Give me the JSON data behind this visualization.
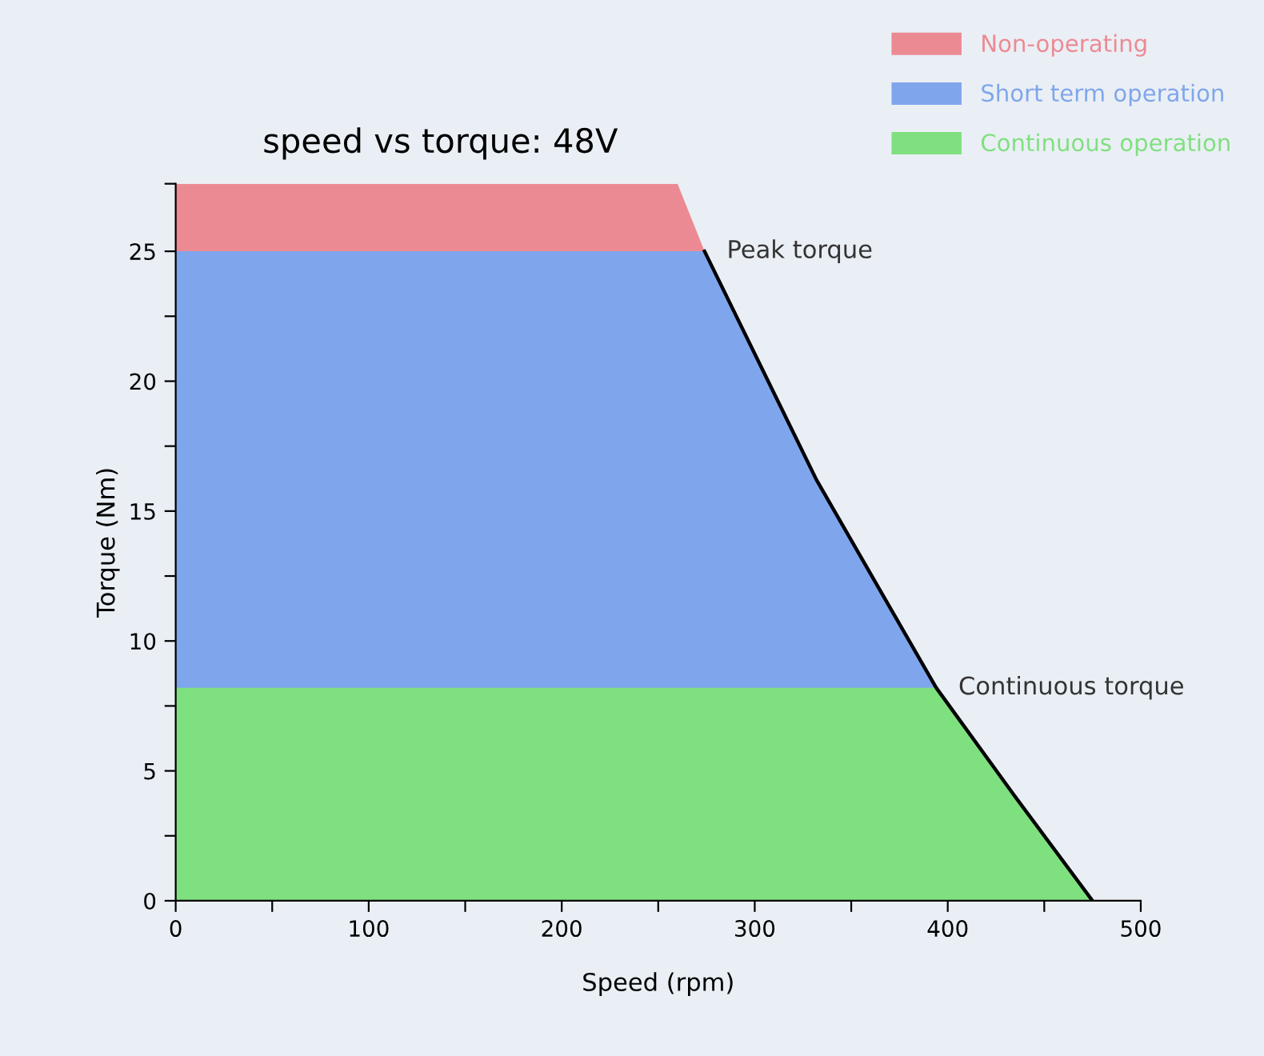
{
  "chart_data": {
    "type": "area",
    "title": "speed vs torque: 48V",
    "xlabel": "Speed (rpm)",
    "ylabel": "Torque (Nm)",
    "series": [
      {
        "name": "Non-operating",
        "color": "#ec8a94",
        "x": [
          0,
          260,
          274
        ],
        "values": [
          27.6,
          27.6,
          25
        ]
      },
      {
        "name": "Short term operation",
        "color": "#7fa6ec",
        "x": [
          0,
          274,
          332,
          394
        ],
        "values": [
          25,
          25,
          16.2,
          8.2
        ]
      },
      {
        "name": "Continuous operation",
        "color": "#7fe07f",
        "x": [
          0,
          394,
          434,
          475
        ],
        "values": [
          8.2,
          8.2,
          4.1,
          0
        ]
      },
      {
        "type": "line",
        "color": "#000000",
        "x": [
          274,
          332,
          394,
          434,
          475
        ],
        "values": [
          25,
          16.2,
          8.2,
          4.1,
          0
        ]
      }
    ],
    "annotations": [
      {
        "text": "Peak torque",
        "x": 274,
        "y": 25
      },
      {
        "text": "Continuous torque",
        "x": 394,
        "y": 8.2
      }
    ],
    "xlim": [
      0,
      500
    ],
    "ylim": [
      0,
      27.6
    ],
    "xticks": [
      0,
      {
        "value": 50,
        "label": null
      },
      100,
      {
        "value": 150,
        "label": null
      },
      200,
      {
        "value": 250,
        "label": null
      },
      300,
      {
        "value": 350,
        "label": null
      },
      400,
      {
        "value": 450,
        "label": null
      },
      500
    ],
    "yticks": [
      0,
      {
        "value": 2.5,
        "label": null
      },
      5,
      {
        "value": 7.5,
        "label": null
      },
      10,
      {
        "value": 12.5,
        "label": null
      },
      15,
      {
        "value": 17.5,
        "label": null
      },
      20,
      {
        "value": 22.5,
        "label": null
      },
      25,
      {
        "value": 27.6,
        "label": null
      }
    ],
    "grid": false,
    "legend": "top right"
  }
}
